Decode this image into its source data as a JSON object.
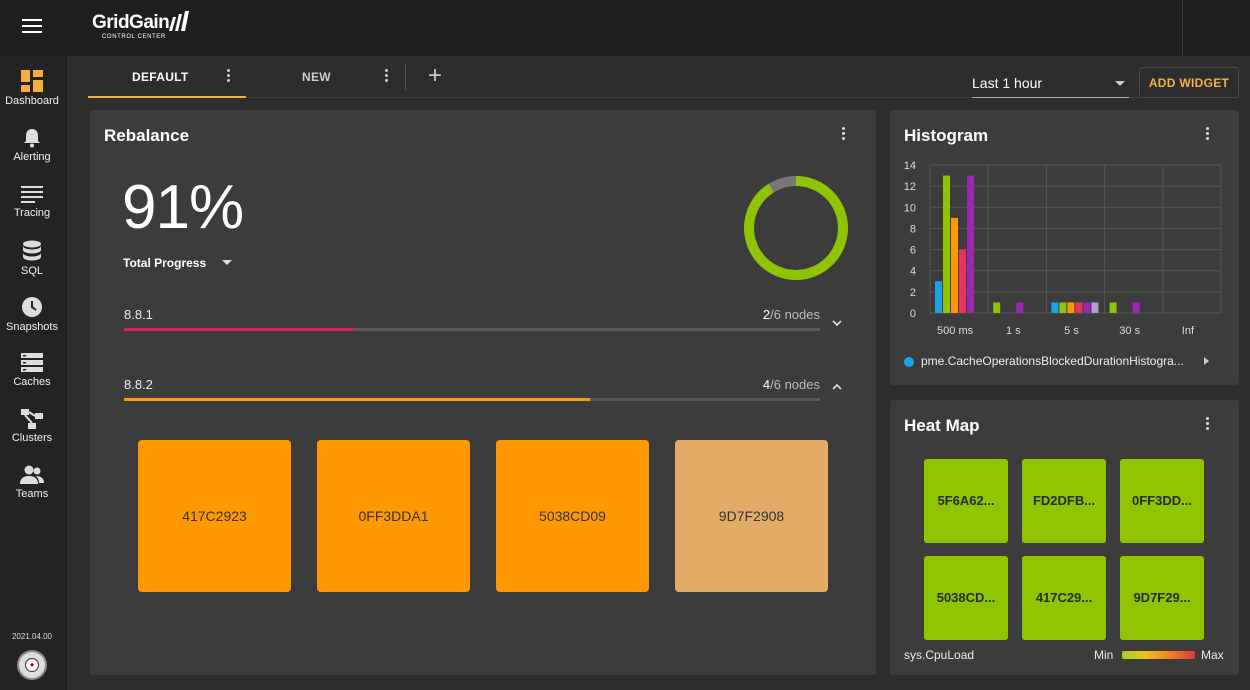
{
  "brand": {
    "name": "GridGain",
    "subtitle": "CONTROL CENTER"
  },
  "sidebar": {
    "items": [
      {
        "label": "Dashboard",
        "icon": "dashboard-icon",
        "active": true
      },
      {
        "label": "Alerting",
        "icon": "bell-icon"
      },
      {
        "label": "Tracing",
        "icon": "lines-icon"
      },
      {
        "label": "SQL",
        "icon": "database-icon"
      },
      {
        "label": "Snapshots",
        "icon": "clock-icon"
      },
      {
        "label": "Caches",
        "icon": "stack-icon"
      },
      {
        "label": "Clusters",
        "icon": "tree-icon"
      },
      {
        "label": "Teams",
        "icon": "people-icon"
      }
    ],
    "version": "2021.04.00"
  },
  "tabs": [
    {
      "label": "DEFAULT",
      "active": true
    },
    {
      "label": "NEW",
      "active": false
    }
  ],
  "toolbar": {
    "time_range": "Last 1 hour",
    "add_widget": "ADD WIDGET"
  },
  "rebalance": {
    "title": "Rebalance",
    "percent": "91%",
    "progress_fraction": 0.91,
    "total_label": "Total Progress",
    "versions": [
      {
        "name": "8.8.1",
        "done": "2",
        "total": "/6 nodes",
        "fraction": 0.33,
        "color": "#d4245e",
        "expanded": false
      },
      {
        "name": "8.8.2",
        "done": "4",
        "total": "/6 nodes",
        "fraction": 0.67,
        "color": "#f5a100",
        "expanded": true
      }
    ],
    "nodes": [
      {
        "id": "417C2923",
        "color": "#ff9800"
      },
      {
        "id": "0FF3DDA1",
        "color": "#ff9800"
      },
      {
        "id": "5038CD09",
        "color": "#ff9800"
      },
      {
        "id": "9D7F2908",
        "color": "#e3ad68"
      }
    ]
  },
  "histogram": {
    "title": "Histogram",
    "legend": "pme.CacheOperationsBlockedDurationHistogra..."
  },
  "chart_data": {
    "type": "bar",
    "categories": [
      "500 ms",
      "1 s",
      "5 s",
      "30 s",
      "Inf"
    ],
    "ylim": [
      0,
      14
    ],
    "yticks": [
      0,
      2,
      4,
      6,
      8,
      10,
      12,
      14
    ],
    "grid": true,
    "groups": [
      {
        "category": "500 ms",
        "bars": [
          {
            "value": 3,
            "color": "#1aa3e8"
          },
          {
            "value": 13,
            "color": "#8fc400"
          },
          {
            "value": 9,
            "color": "#ff9800"
          },
          {
            "value": 6,
            "color": "#e8335f"
          },
          {
            "value": 13,
            "color": "#9c27b0"
          }
        ]
      },
      {
        "category": "1 s",
        "bars": [
          {
            "value": 1,
            "color": "#8fc400"
          },
          {
            "value": 1,
            "color": "#9c27b0"
          }
        ]
      },
      {
        "category": "5 s",
        "bars": [
          {
            "value": 1,
            "color": "#1aa3e8"
          },
          {
            "value": 1,
            "color": "#8fc400"
          },
          {
            "value": 1,
            "color": "#ff9800"
          },
          {
            "value": 1,
            "color": "#e8335f"
          },
          {
            "value": 1,
            "color": "#9c27b0"
          },
          {
            "value": 1,
            "color": "#b39ddb"
          }
        ]
      },
      {
        "category": "30 s",
        "bars": [
          {
            "value": 1,
            "color": "#8fc400"
          },
          {
            "value": 1,
            "color": "#9c27b0"
          }
        ]
      }
    ]
  },
  "heatmap": {
    "title": "Heat Map",
    "tiles": [
      "5F6A62...",
      "FD2DFB...",
      "0FF3DD...",
      "5038CD...",
      "417C29...",
      "9D7F29..."
    ],
    "metric": "sys.CpuLoad",
    "min": "Min",
    "max": "Max"
  }
}
